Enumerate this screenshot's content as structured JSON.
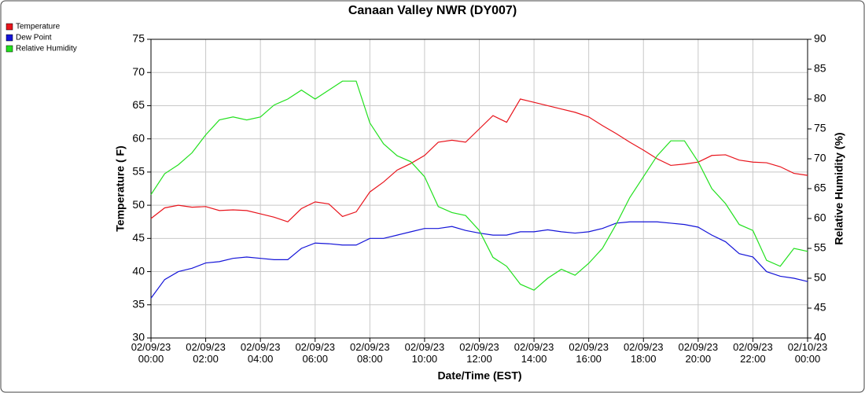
{
  "chart_data": {
    "type": "line",
    "title": "Canaan Valley NWR (DY007)",
    "xlabel": "Date/Time (EST)",
    "ylabel": "Temperature ( F)",
    "y2label": "Relative Humidity (%)",
    "x": [
      0,
      0.5,
      1,
      1.5,
      2,
      2.5,
      3,
      3.5,
      4,
      4.5,
      5,
      5.5,
      6,
      6.5,
      7,
      7.5,
      8,
      8.5,
      9,
      9.5,
      10,
      10.5,
      11,
      11.5,
      12,
      12.5,
      13,
      13.5,
      14,
      14.5,
      15,
      15.5,
      16,
      16.5,
      17,
      17.5,
      18,
      18.5,
      19,
      19.5,
      20,
      20.5,
      21,
      21.5,
      22,
      22.5,
      23,
      23.5,
      24
    ],
    "series": [
      {
        "name": "Temperature",
        "color": "#e8141c",
        "axis": "y",
        "values": [
          48,
          49.6,
          50,
          49.7,
          49.8,
          49.2,
          49.3,
          49.2,
          48.7,
          48.2,
          47.5,
          49.5,
          50.5,
          50.2,
          48.3,
          49,
          52,
          53.5,
          55.3,
          56.3,
          57.5,
          59.5,
          59.8,
          59.5,
          61.5,
          63.5,
          62.5,
          66,
          65.5,
          65,
          64.5,
          64,
          63.3,
          62,
          60.8,
          59.5,
          58.3,
          57,
          56,
          56.2,
          56.5,
          57.5,
          57.6,
          56.8,
          56.5,
          56.4,
          55.8,
          54.8,
          54.5
        ]
      },
      {
        "name": "Dew Point",
        "color": "#1414d8",
        "axis": "y",
        "values": [
          36,
          38.8,
          40,
          40.5,
          41.3,
          41.5,
          42,
          42.2,
          42,
          41.8,
          41.8,
          43.5,
          44.3,
          44.2,
          44,
          44,
          45,
          45,
          45.5,
          46,
          46.5,
          46.5,
          46.8,
          46.2,
          45.8,
          45.5,
          45.5,
          46,
          46,
          46.3,
          46,
          45.8,
          46,
          46.5,
          47.3,
          47.5,
          47.5,
          47.5,
          47.3,
          47.1,
          46.7,
          45.5,
          44.5,
          42.7,
          42.2,
          40,
          39.3,
          39,
          38.5
        ]
      },
      {
        "name": "Relative Humidity",
        "color": "#22e01e",
        "axis": "y2",
        "values": [
          64,
          67.5,
          69,
          71,
          74,
          76.5,
          77,
          76.5,
          77,
          79,
          80,
          81.5,
          80,
          81.5,
          83,
          83,
          76,
          72.5,
          70.5,
          69.5,
          67,
          62,
          61,
          60.5,
          58,
          53.5,
          52,
          49,
          48,
          50,
          51.5,
          50.5,
          52.5,
          55,
          59,
          63.5,
          67,
          70.5,
          73,
          73,
          69.5,
          65,
          62.5,
          59,
          58,
          53,
          52,
          55,
          54.5
        ]
      }
    ],
    "xlim": [
      0,
      24
    ],
    "xticks": [
      {
        "value": 0,
        "label": "02/09/23 00:00"
      },
      {
        "value": 2,
        "label": "02/09/23 02:00"
      },
      {
        "value": 4,
        "label": "02/09/23 04:00"
      },
      {
        "value": 6,
        "label": "02/09/23 06:00"
      },
      {
        "value": 8,
        "label": "02/09/23 08:00"
      },
      {
        "value": 10,
        "label": "02/09/23 10:00"
      },
      {
        "value": 12,
        "label": "02/09/23 12:00"
      },
      {
        "value": 14,
        "label": "02/09/23 14:00"
      },
      {
        "value": 16,
        "label": "02/09/23 16:00"
      },
      {
        "value": 18,
        "label": "02/09/23 18:00"
      },
      {
        "value": 20,
        "label": "02/09/23 20:00"
      },
      {
        "value": 22,
        "label": "02/09/23 22:00"
      },
      {
        "value": 24,
        "label": "02/10/23 00:00"
      }
    ],
    "ylim": [
      30,
      75
    ],
    "yticks": [
      30,
      35,
      40,
      45,
      50,
      55,
      60,
      65,
      70,
      75
    ],
    "y2lim": [
      40,
      90
    ],
    "y2ticks": [
      40,
      45,
      50,
      55,
      60,
      65,
      70,
      75,
      80,
      85,
      90
    ],
    "grid": true,
    "legend": "top-left"
  }
}
